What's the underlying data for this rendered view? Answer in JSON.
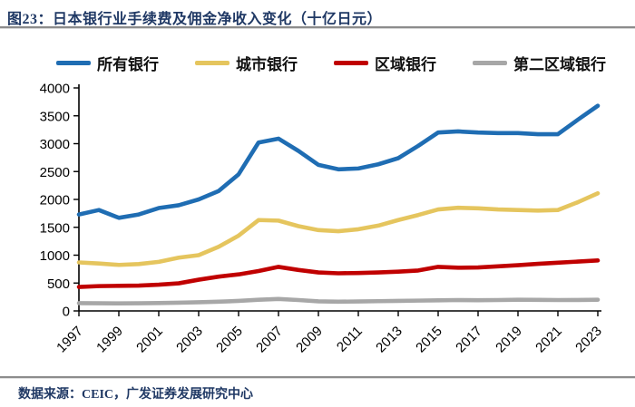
{
  "header": {
    "figure_label": "图23：",
    "title": "日本银行业手续费及佣金净收入变化（十亿日元）"
  },
  "footer": {
    "source": "数据来源：CEIC，广发证券发展研究中心"
  },
  "colors": {
    "accent_text": "#1F3864",
    "divider": "#8C8C8C",
    "axis": "#000000"
  },
  "chart_data": {
    "type": "line",
    "title": "日本银行业手续费及佣金净收入变化（十亿日元）",
    "xlabel": "",
    "ylabel": "",
    "ylim": [
      0,
      4000
    ],
    "y_ticks": [
      0,
      500,
      1000,
      1500,
      2000,
      2500,
      3000,
      3500,
      4000
    ],
    "grid": false,
    "legend_position": "top",
    "x": [
      1997,
      1998,
      1999,
      2000,
      2001,
      2002,
      2003,
      2004,
      2005,
      2006,
      2007,
      2008,
      2009,
      2010,
      2011,
      2012,
      2013,
      2014,
      2015,
      2016,
      2017,
      2018,
      2019,
      2020,
      2021,
      2022,
      2023
    ],
    "x_tick_labels": [
      "1997",
      "1999",
      "2001",
      "2003",
      "2005",
      "2007",
      "2009",
      "2011",
      "2013",
      "2015",
      "2017",
      "2019",
      "2021",
      "2023"
    ],
    "series": [
      {
        "name": "所有银行",
        "color": "#1F6DB3",
        "values": [
          1730,
          1810,
          1670,
          1730,
          1845,
          1895,
          2000,
          2150,
          2450,
          3020,
          3090,
          2870,
          2620,
          2540,
          2555,
          2630,
          2740,
          2960,
          3200,
          3220,
          3200,
          3190,
          3190,
          3170,
          3170,
          3430,
          3680
        ]
      },
      {
        "name": "城市银行",
        "color": "#E5C55E",
        "values": [
          870,
          850,
          825,
          840,
          880,
          955,
          1000,
          1150,
          1350,
          1630,
          1620,
          1520,
          1450,
          1430,
          1465,
          1530,
          1630,
          1720,
          1820,
          1850,
          1840,
          1820,
          1810,
          1800,
          1810,
          1950,
          2110
        ]
      },
      {
        "name": "区域银行",
        "color": "#C00000",
        "values": [
          430,
          445,
          450,
          455,
          470,
          495,
          560,
          615,
          655,
          715,
          790,
          735,
          690,
          675,
          680,
          690,
          705,
          725,
          790,
          775,
          780,
          800,
          820,
          845,
          865,
          885,
          905
        ]
      },
      {
        "name": "第二区域银行",
        "color": "#A7A7A7",
        "values": [
          140,
          138,
          135,
          138,
          142,
          148,
          155,
          165,
          180,
          200,
          215,
          195,
          172,
          165,
          170,
          175,
          180,
          185,
          190,
          195,
          192,
          195,
          200,
          198,
          195,
          196,
          200
        ]
      }
    ]
  }
}
